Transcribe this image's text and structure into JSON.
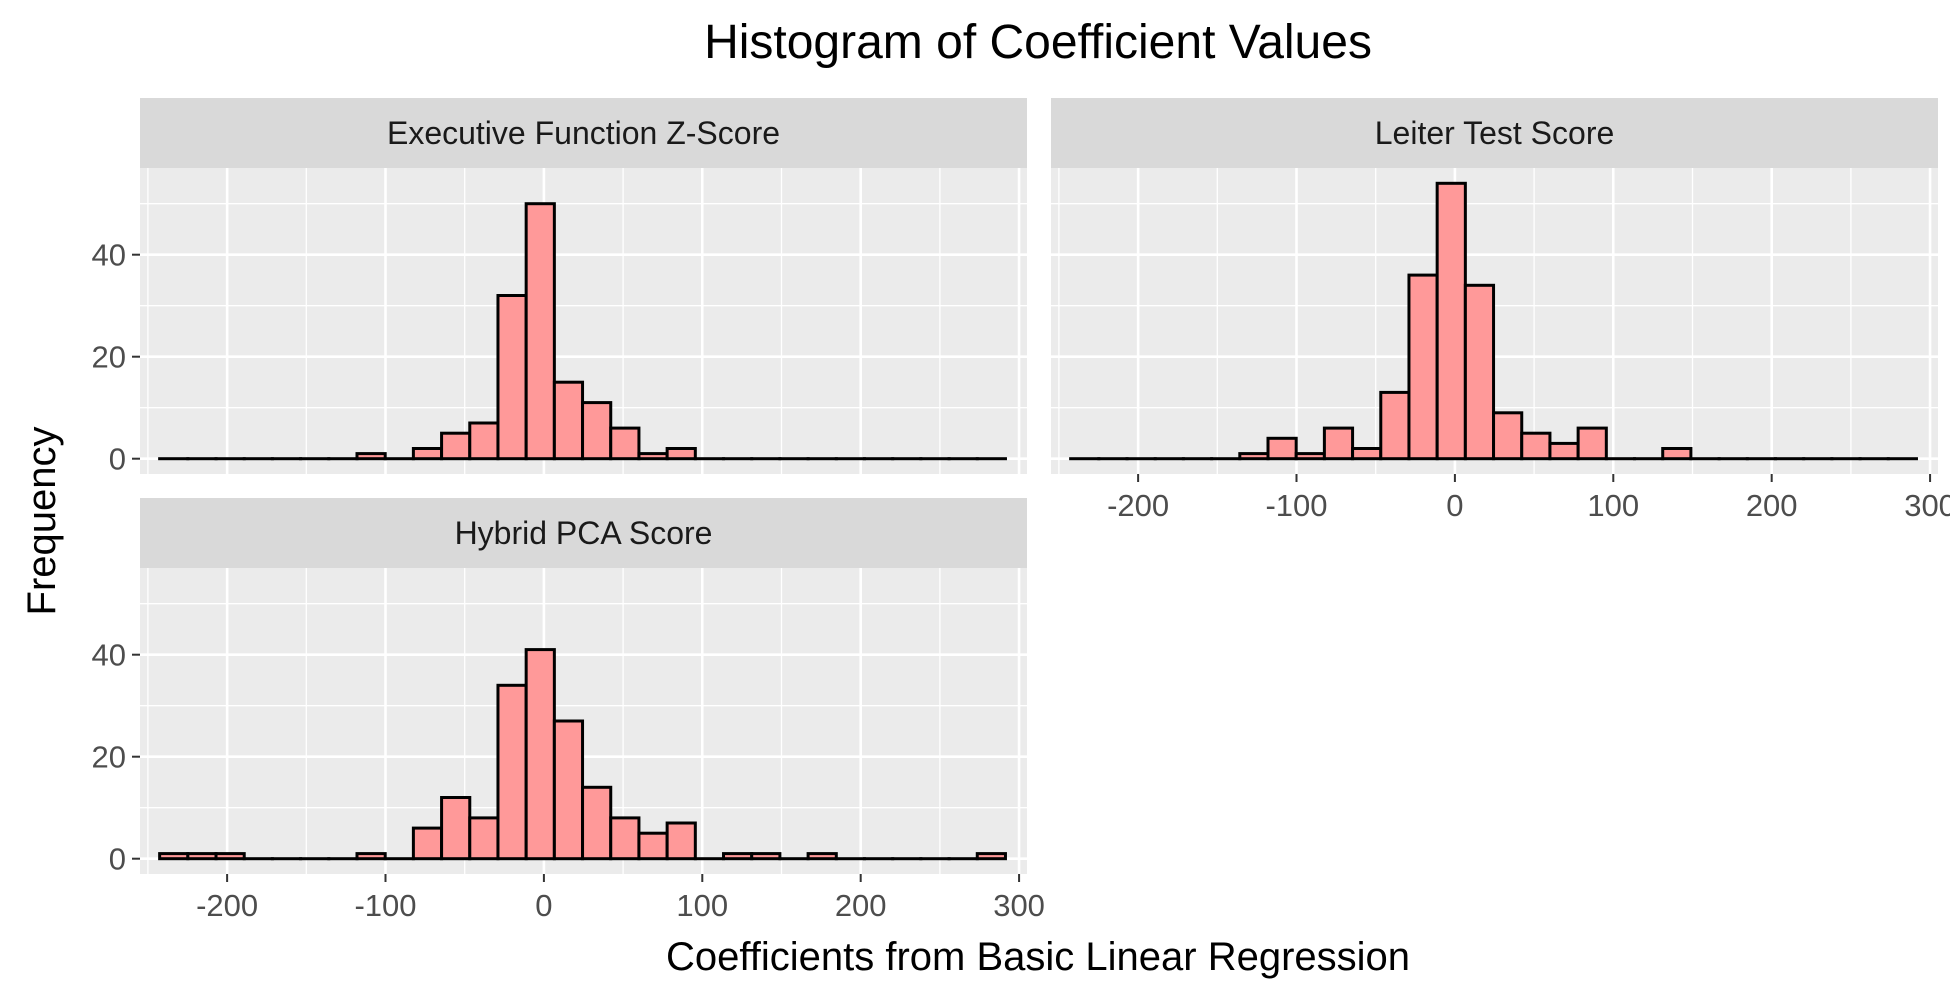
{
  "chart_data": {
    "type": "bar",
    "title": "Histogram of Coefficient Values",
    "xlabel": "Coefficients from Basic Linear Regression",
    "ylabel": "Frequency",
    "xlim": [
      -255,
      305
    ],
    "ylim": [
      -3,
      57
    ],
    "x_ticks": [
      -200,
      -100,
      0,
      100,
      200,
      300
    ],
    "y_ticks": [
      0,
      20,
      40
    ],
    "bin_width": 17.8,
    "grid": true,
    "bar_color": "#FF9999",
    "bar_outline": "#000000",
    "panel_bg": "#EBEBEB",
    "strip_bg": "#D9D9D9",
    "panels": [
      {
        "label": "Executive Function Z-Score",
        "bins": [
          {
            "x": -233.7,
            "count": 0
          },
          {
            "x": -215.9,
            "count": 0
          },
          {
            "x": -198.1,
            "count": 0
          },
          {
            "x": -180.3,
            "count": 0
          },
          {
            "x": -162.5,
            "count": 0
          },
          {
            "x": -144.7,
            "count": 0
          },
          {
            "x": -126.9,
            "count": 0
          },
          {
            "x": -109.1,
            "count": 1
          },
          {
            "x": -91.3,
            "count": 0
          },
          {
            "x": -73.5,
            "count": 2
          },
          {
            "x": -55.7,
            "count": 5
          },
          {
            "x": -37.9,
            "count": 7
          },
          {
            "x": -20.1,
            "count": 32
          },
          {
            "x": -2.3,
            "count": 50
          },
          {
            "x": 15.5,
            "count": 15
          },
          {
            "x": 33.3,
            "count": 11
          },
          {
            "x": 51.1,
            "count": 6
          },
          {
            "x": 68.9,
            "count": 1
          },
          {
            "x": 86.7,
            "count": 2
          },
          {
            "x": 104.5,
            "count": 0
          },
          {
            "x": 122.3,
            "count": 0
          },
          {
            "x": 140.1,
            "count": 0
          },
          {
            "x": 157.9,
            "count": 0
          },
          {
            "x": 175.7,
            "count": 0
          },
          {
            "x": 193.5,
            "count": 0
          },
          {
            "x": 211.3,
            "count": 0
          },
          {
            "x": 229.1,
            "count": 0
          },
          {
            "x": 246.9,
            "count": 0
          },
          {
            "x": 264.7,
            "count": 0
          },
          {
            "x": 282.5,
            "count": 0
          }
        ]
      },
      {
        "label": "Leiter Test Score",
        "bins": [
          {
            "x": -233.7,
            "count": 0
          },
          {
            "x": -215.9,
            "count": 0
          },
          {
            "x": -198.1,
            "count": 0
          },
          {
            "x": -180.3,
            "count": 0
          },
          {
            "x": -162.5,
            "count": 0
          },
          {
            "x": -144.7,
            "count": 0
          },
          {
            "x": -126.9,
            "count": 1
          },
          {
            "x": -109.1,
            "count": 4
          },
          {
            "x": -91.3,
            "count": 1
          },
          {
            "x": -73.5,
            "count": 6
          },
          {
            "x": -55.7,
            "count": 2
          },
          {
            "x": -37.9,
            "count": 13
          },
          {
            "x": -20.1,
            "count": 36
          },
          {
            "x": -2.3,
            "count": 54
          },
          {
            "x": 15.5,
            "count": 34
          },
          {
            "x": 33.3,
            "count": 9
          },
          {
            "x": 51.1,
            "count": 5
          },
          {
            "x": 68.9,
            "count": 3
          },
          {
            "x": 86.7,
            "count": 6
          },
          {
            "x": 104.5,
            "count": 0
          },
          {
            "x": 122.3,
            "count": 0
          },
          {
            "x": 140.1,
            "count": 2
          },
          {
            "x": 157.9,
            "count": 0
          },
          {
            "x": 175.7,
            "count": 0
          },
          {
            "x": 193.5,
            "count": 0
          },
          {
            "x": 211.3,
            "count": 0
          },
          {
            "x": 229.1,
            "count": 0
          },
          {
            "x": 246.9,
            "count": 0
          },
          {
            "x": 264.7,
            "count": 0
          },
          {
            "x": 282.5,
            "count": 0
          }
        ]
      },
      {
        "label": "Hybrid PCA Score",
        "bins": [
          {
            "x": -233.7,
            "count": 1
          },
          {
            "x": -215.9,
            "count": 1
          },
          {
            "x": -198.1,
            "count": 1
          },
          {
            "x": -180.3,
            "count": 0
          },
          {
            "x": -162.5,
            "count": 0
          },
          {
            "x": -144.7,
            "count": 0
          },
          {
            "x": -126.9,
            "count": 0
          },
          {
            "x": -109.1,
            "count": 1
          },
          {
            "x": -91.3,
            "count": 0
          },
          {
            "x": -73.5,
            "count": 6
          },
          {
            "x": -55.7,
            "count": 12
          },
          {
            "x": -37.9,
            "count": 8
          },
          {
            "x": -20.1,
            "count": 34
          },
          {
            "x": -2.3,
            "count": 41
          },
          {
            "x": 15.5,
            "count": 27
          },
          {
            "x": 33.3,
            "count": 14
          },
          {
            "x": 51.1,
            "count": 8
          },
          {
            "x": 68.9,
            "count": 5
          },
          {
            "x": 86.7,
            "count": 7
          },
          {
            "x": 104.5,
            "count": 0
          },
          {
            "x": 122.3,
            "count": 1
          },
          {
            "x": 140.1,
            "count": 1
          },
          {
            "x": 157.9,
            "count": 0
          },
          {
            "x": 175.7,
            "count": 1
          },
          {
            "x": 193.5,
            "count": 0
          },
          {
            "x": 211.3,
            "count": 0
          },
          {
            "x": 229.1,
            "count": 0
          },
          {
            "x": 246.9,
            "count": 0
          },
          {
            "x": 264.7,
            "count": 0
          },
          {
            "x": 282.5,
            "count": 1
          }
        ]
      }
    ]
  }
}
